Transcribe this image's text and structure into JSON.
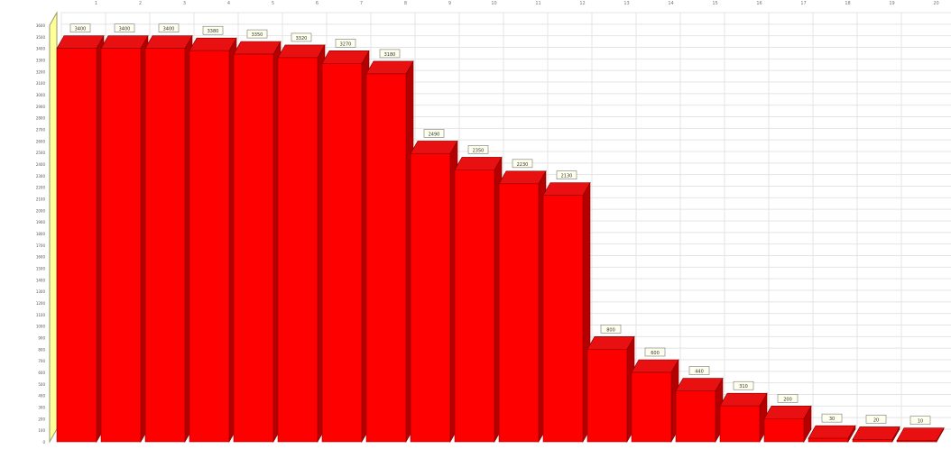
{
  "chart_data": {
    "type": "bar",
    "style": "3d",
    "grid": true,
    "legend": "none",
    "ylim": [
      0,
      3600
    ],
    "y_ticks": [
      0,
      100,
      200,
      300,
      400,
      500,
      600,
      700,
      800,
      900,
      1000,
      1100,
      1200,
      1300,
      1400,
      1500,
      1600,
      1700,
      1800,
      1900,
      2000,
      2100,
      2200,
      2300,
      2400,
      2500,
      2600,
      2700,
      2800,
      2900,
      3000,
      3100,
      3200,
      3300,
      3400,
      3500,
      3600
    ],
    "categories": [
      "1",
      "2",
      "3",
      "4",
      "5",
      "6",
      "7",
      "8",
      "9",
      "10",
      "11",
      "12",
      "13",
      "14",
      "15",
      "16",
      "17",
      "18",
      "19",
      "20"
    ],
    "values": [
      3400,
      3400,
      3400,
      3380,
      3350,
      3320,
      3270,
      3180,
      2490,
      2350,
      2230,
      2130,
      800,
      600,
      440,
      310,
      200,
      30,
      20,
      10
    ],
    "data_labels": [
      "3400",
      "3400",
      "3400",
      "3380",
      "3350",
      "3320",
      "3270",
      "3180",
      "2490",
      "2350",
      "2230",
      "2130",
      "800",
      "600",
      "440",
      "310",
      "200",
      "30",
      "20",
      "10"
    ],
    "colors": {
      "bar_front": "#ff0000",
      "bar_top": "#e81010",
      "bar_side": "#b40000",
      "wall": "#ffff99",
      "grid": "#e4e4e4",
      "label_bg": "#ffffee"
    }
  }
}
